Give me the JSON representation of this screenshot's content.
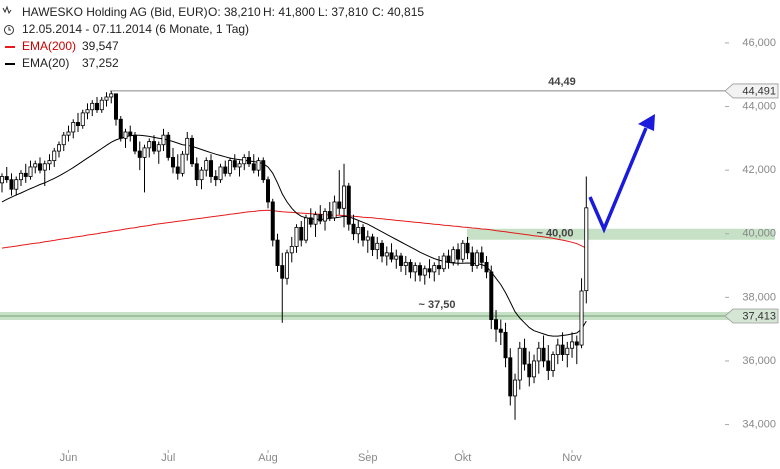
{
  "chart_data": {
    "type": "candlestick",
    "title": "HAWESKO Holding AG (Bid, EUR)",
    "quote": [
      "O: 38,210",
      "H: 41,800",
      "L: 37,810",
      "C: 40,815"
    ],
    "subtitle": "12.05.2014 - 07.11.2014 (6 Monate, 1 Tag)",
    "ylim": [
      33.2,
      47.35
    ],
    "yticks": [
      {
        "value": 34,
        "label": "34,000"
      },
      {
        "value": 36,
        "label": "36,000"
      },
      {
        "value": 38,
        "label": "38,000"
      },
      {
        "value": 40,
        "label": "40,000"
      },
      {
        "value": 42,
        "label": "42,000"
      },
      {
        "value": 44,
        "label": "44,000"
      },
      {
        "value": 46,
        "label": "46,000"
      }
    ],
    "xlim": [
      -0.42,
      152.2
    ],
    "xticks": [
      {
        "value": 14,
        "label": "Jun"
      },
      {
        "value": 35,
        "label": "Jul"
      },
      {
        "value": 56,
        "label": "Aug"
      },
      {
        "value": 77,
        "label": "Sep"
      },
      {
        "value": 97,
        "label": "Okt"
      },
      {
        "value": 120,
        "label": "Nov"
      }
    ],
    "grid": false,
    "ohlc": [
      [
        41.6,
        41.9,
        41.3,
        41.8
      ],
      [
        41.8,
        42.1,
        41.6,
        41.7
      ],
      [
        41.7,
        41.9,
        41.2,
        41.4
      ],
      [
        41.4,
        41.8,
        41.2,
        41.7
      ],
      [
        41.7,
        42.0,
        41.5,
        41.9
      ],
      [
        41.9,
        42.2,
        41.6,
        41.8
      ],
      [
        41.8,
        42.3,
        41.7,
        42.1
      ],
      [
        42.1,
        42.3,
        41.9,
        42.2
      ],
      [
        42.2,
        42.4,
        41.9,
        42.0
      ],
      [
        42.0,
        42.3,
        41.5,
        42.2
      ],
      [
        42.2,
        42.5,
        42.0,
        42.3
      ],
      [
        42.3,
        42.7,
        42.1,
        42.6
      ],
      [
        42.6,
        42.9,
        42.4,
        42.8
      ],
      [
        42.8,
        43.2,
        42.6,
        43.1
      ],
      [
        43.1,
        43.4,
        42.9,
        43.2
      ],
      [
        43.2,
        43.6,
        43.0,
        43.5
      ],
      [
        43.5,
        43.8,
        43.2,
        43.4
      ],
      [
        43.4,
        43.9,
        43.3,
        43.8
      ],
      [
        43.8,
        44.1,
        43.6,
        43.9
      ],
      [
        43.9,
        44.2,
        43.7,
        44.1
      ],
      [
        44.1,
        44.3,
        43.8,
        43.9
      ],
      [
        43.9,
        44.3,
        43.8,
        44.2
      ],
      [
        44.2,
        44.45,
        44.0,
        44.3
      ],
      [
        44.3,
        44.49,
        44.1,
        44.4
      ],
      [
        44.4,
        44.4,
        43.4,
        43.6
      ],
      [
        43.6,
        43.7,
        42.9,
        43.0
      ],
      [
        43.0,
        43.3,
        42.7,
        43.2
      ],
      [
        43.2,
        43.4,
        42.9,
        43.1
      ],
      [
        43.1,
        43.2,
        42.5,
        42.6
      ],
      [
        42.6,
        42.9,
        42.0,
        42.4
      ],
      [
        42.4,
        42.8,
        41.3,
        42.7
      ],
      [
        42.7,
        43.0,
        42.4,
        42.9
      ],
      [
        42.9,
        43.1,
        42.5,
        42.6
      ],
      [
        42.6,
        42.9,
        42.2,
        42.8
      ],
      [
        42.8,
        43.3,
        42.6,
        43.1
      ],
      [
        43.1,
        43.2,
        42.3,
        42.4
      ],
      [
        42.4,
        42.7,
        41.9,
        42.1
      ],
      [
        42.1,
        42.5,
        41.7,
        41.9
      ],
      [
        41.9,
        42.6,
        41.8,
        42.5
      ],
      [
        42.5,
        43.2,
        42.3,
        43.0
      ],
      [
        43.0,
        43.1,
        42.1,
        42.2
      ],
      [
        42.2,
        42.4,
        41.5,
        41.7
      ],
      [
        41.7,
        42.1,
        41.4,
        42.0
      ],
      [
        42.0,
        42.4,
        41.8,
        42.3
      ],
      [
        42.3,
        42.5,
        41.6,
        41.8
      ],
      [
        41.8,
        42.0,
        41.5,
        41.7
      ],
      [
        41.7,
        42.2,
        41.6,
        42.1
      ],
      [
        42.1,
        42.3,
        41.8,
        41.9
      ],
      [
        41.9,
        42.4,
        41.8,
        42.3
      ],
      [
        42.3,
        42.5,
        42.0,
        42.1
      ],
      [
        42.1,
        42.3,
        41.8,
        42.2
      ],
      [
        42.2,
        42.5,
        42.0,
        42.4
      ],
      [
        42.4,
        42.6,
        42.1,
        42.2
      ],
      [
        42.2,
        42.5,
        41.9,
        42.0
      ],
      [
        42.0,
        42.4,
        41.8,
        42.3
      ],
      [
        42.3,
        42.4,
        41.6,
        41.7
      ],
      [
        41.7,
        41.8,
        40.8,
        41.0
      ],
      [
        41.0,
        41.1,
        39.6,
        39.8
      ],
      [
        39.8,
        40.0,
        38.8,
        39.0
      ],
      [
        39.0,
        39.4,
        37.2,
        38.6
      ],
      [
        38.6,
        39.5,
        38.4,
        39.4
      ],
      [
        39.4,
        39.9,
        39.1,
        39.6
      ],
      [
        39.6,
        40.3,
        39.4,
        40.2
      ],
      [
        40.2,
        40.4,
        39.6,
        39.8
      ],
      [
        39.8,
        40.6,
        39.7,
        40.5
      ],
      [
        40.5,
        40.8,
        40.2,
        40.3
      ],
      [
        40.3,
        40.7,
        39.9,
        40.6
      ],
      [
        40.6,
        40.9,
        40.3,
        40.4
      ],
      [
        40.4,
        40.8,
        40.1,
        40.7
      ],
      [
        40.7,
        41.0,
        40.4,
        40.5
      ],
      [
        40.5,
        41.2,
        40.4,
        41.0
      ],
      [
        41.0,
        42.0,
        40.6,
        40.8
      ],
      [
        40.8,
        42.2,
        40.2,
        41.5
      ],
      [
        41.5,
        41.6,
        40.1,
        40.3
      ],
      [
        40.3,
        40.6,
        39.8,
        40.0
      ],
      [
        40.0,
        40.4,
        39.7,
        40.2
      ],
      [
        40.2,
        40.3,
        39.6,
        39.8
      ],
      [
        39.8,
        40.1,
        39.4,
        39.9
      ],
      [
        39.9,
        40.0,
        39.3,
        39.5
      ],
      [
        39.5,
        39.9,
        39.2,
        39.7
      ],
      [
        39.7,
        39.8,
        39.1,
        39.3
      ],
      [
        39.3,
        39.6,
        39.0,
        39.4
      ],
      [
        39.4,
        39.7,
        39.1,
        39.2
      ],
      [
        39.2,
        39.5,
        38.9,
        39.3
      ],
      [
        39.3,
        39.4,
        38.8,
        39.0
      ],
      [
        39.0,
        39.3,
        38.7,
        39.1
      ],
      [
        39.1,
        39.2,
        38.6,
        38.8
      ],
      [
        38.8,
        39.1,
        38.5,
        39.0
      ],
      [
        39.0,
        39.1,
        38.5,
        38.7
      ],
      [
        38.7,
        39.0,
        38.4,
        38.9
      ],
      [
        38.9,
        39.2,
        38.6,
        38.8
      ],
      [
        38.8,
        39.1,
        38.5,
        39.0
      ],
      [
        39.0,
        39.3,
        38.7,
        38.9
      ],
      [
        38.9,
        39.4,
        38.8,
        39.3
      ],
      [
        39.3,
        39.5,
        38.9,
        39.1
      ],
      [
        39.1,
        39.6,
        39.0,
        39.5
      ],
      [
        39.5,
        39.7,
        39.0,
        39.2
      ],
      [
        39.2,
        39.8,
        39.1,
        39.7
      ],
      [
        39.7,
        39.9,
        39.2,
        39.4
      ],
      [
        39.4,
        39.6,
        38.8,
        39.0
      ],
      [
        39.0,
        39.5,
        38.9,
        39.4
      ],
      [
        39.4,
        39.6,
        38.9,
        39.1
      ],
      [
        39.1,
        39.3,
        38.6,
        38.8
      ],
      [
        38.8,
        39.0,
        37.0,
        37.3
      ],
      [
        37.3,
        37.6,
        36.6,
        37.0
      ],
      [
        37.0,
        37.3,
        36.5,
        36.9
      ],
      [
        36.9,
        37.2,
        35.8,
        36.1
      ],
      [
        36.1,
        36.4,
        34.6,
        34.9
      ],
      [
        34.9,
        35.6,
        34.15,
        35.4
      ],
      [
        35.4,
        36.6,
        35.1,
        36.4
      ],
      [
        36.4,
        36.7,
        35.7,
        35.9
      ],
      [
        35.9,
        36.3,
        35.2,
        35.5
      ],
      [
        35.5,
        36.2,
        35.3,
        36.0
      ],
      [
        36.0,
        36.6,
        35.6,
        36.4
      ],
      [
        36.4,
        36.8,
        35.8,
        36.0
      ],
      [
        36.0,
        36.5,
        35.4,
        35.7
      ],
      [
        35.7,
        36.3,
        35.5,
        36.2
      ],
      [
        36.2,
        36.7,
        35.9,
        36.5
      ],
      [
        36.5,
        36.9,
        36.0,
        36.2
      ],
      [
        36.2,
        36.6,
        35.8,
        36.4
      ],
      [
        36.4,
        36.9,
        36.1,
        36.6
      ],
      [
        36.6,
        36.8,
        35.9,
        36.5
      ],
      [
        36.5,
        38.6,
        36.4,
        38.2
      ],
      [
        38.21,
        41.8,
        37.81,
        40.815
      ]
    ],
    "series": [
      {
        "name": "EMA(200)",
        "color": "#e41a1c",
        "last_label": "39,547",
        "values": [
          39.55,
          39.57,
          39.59,
          39.61,
          39.64,
          39.66,
          39.68,
          39.7,
          39.72,
          39.75,
          39.77,
          39.79,
          39.82,
          39.84,
          39.86,
          39.89,
          39.91,
          39.93,
          39.96,
          39.98,
          40.0,
          40.03,
          40.05,
          40.08,
          40.1,
          40.12,
          40.15,
          40.17,
          40.19,
          40.22,
          40.24,
          40.26,
          40.29,
          40.31,
          40.33,
          40.35,
          40.37,
          40.39,
          40.41,
          40.43,
          40.45,
          40.47,
          40.49,
          40.51,
          40.53,
          40.55,
          40.57,
          40.59,
          40.61,
          40.63,
          40.65,
          40.67,
          40.69,
          40.7,
          40.72,
          40.73,
          40.74,
          40.73,
          40.71,
          40.69,
          40.68,
          40.67,
          40.66,
          40.65,
          40.64,
          40.63,
          40.62,
          40.61,
          40.6,
          40.59,
          40.58,
          40.58,
          40.57,
          40.56,
          40.55,
          40.54,
          40.52,
          40.51,
          40.5,
          40.48,
          40.47,
          40.45,
          40.44,
          40.42,
          40.41,
          40.39,
          40.38,
          40.36,
          40.35,
          40.33,
          40.32,
          40.3,
          40.29,
          40.27,
          40.26,
          40.24,
          40.23,
          40.21,
          40.2,
          40.18,
          40.17,
          40.15,
          40.14,
          40.12,
          40.1,
          40.08,
          40.06,
          40.04,
          40.02,
          40.0,
          39.98,
          39.96,
          39.94,
          39.92,
          39.9,
          39.88,
          39.86,
          39.83,
          39.8,
          39.77,
          39.73,
          39.69,
          39.62,
          39.547
        ]
      },
      {
        "name": "EMA(20)",
        "color": "#000000",
        "last_label": "37,252",
        "values": [
          41.0,
          41.08,
          41.15,
          41.22,
          41.28,
          41.35,
          41.42,
          41.48,
          41.55,
          41.6,
          41.67,
          41.74,
          41.82,
          41.9,
          41.99,
          42.08,
          42.18,
          42.28,
          42.38,
          42.48,
          42.58,
          42.68,
          42.78,
          42.88,
          42.95,
          43.0,
          43.05,
          43.08,
          43.1,
          43.1,
          43.08,
          43.06,
          43.03,
          43.0,
          42.98,
          42.94,
          42.9,
          42.85,
          42.8,
          42.78,
          42.75,
          42.7,
          42.65,
          42.6,
          42.55,
          42.5,
          42.46,
          42.42,
          42.38,
          42.35,
          42.33,
          42.31,
          42.29,
          42.27,
          42.25,
          42.2,
          42.1,
          41.9,
          41.6,
          41.25,
          41.0,
          40.8,
          40.65,
          40.55,
          40.5,
          40.47,
          40.45,
          40.45,
          40.46,
          40.48,
          40.5,
          40.52,
          40.55,
          40.53,
          40.48,
          40.42,
          40.36,
          40.3,
          40.22,
          40.14,
          40.06,
          39.98,
          39.9,
          39.82,
          39.74,
          39.66,
          39.58,
          39.5,
          39.42,
          39.35,
          39.28,
          39.22,
          39.17,
          39.13,
          39.1,
          39.08,
          39.07,
          39.07,
          39.08,
          39.07,
          39.06,
          39.03,
          38.97,
          38.8,
          38.6,
          38.4,
          38.15,
          37.85,
          37.55,
          37.35,
          37.2,
          37.05,
          36.95,
          36.9,
          36.85,
          36.8,
          36.78,
          36.78,
          36.8,
          36.82,
          36.85,
          36.88,
          37.0,
          37.252
        ]
      }
    ],
    "levels": [
      {
        "value": 44.491,
        "label": "44,491"
      },
      {
        "value": 37.413,
        "label": "37,413"
      }
    ],
    "annotations": [
      {
        "text": "44,49",
        "value": 44.49
      },
      {
        "text": "~ 40,00",
        "value": 40
      },
      {
        "text": "~ 37,50",
        "value": 37.5
      }
    ]
  }
}
